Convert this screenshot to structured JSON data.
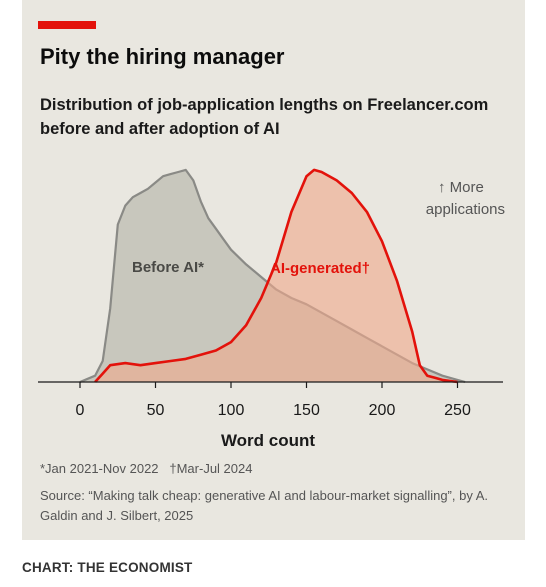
{
  "title": "Pity the hiring manager",
  "subtitle": "Distribution of job-application lengths on Freelancer.com before and after adoption of AI",
  "annotation": "↑ More applications",
  "footnote_before": "*Jan 2021-Nov 2022",
  "footnote_after": "†Mar-Jul 2024",
  "source": "Source: “Making talk cheap: generative AI and labour-market signalling”, by A. Galdin and J. Silbert, 2025",
  "credit": "CHART: THE ECONOMIST",
  "colors": {
    "accent": "#e3120b",
    "before_line": "#8a8a86",
    "before_fill": "#c4c3b9",
    "after_line": "#e3120b",
    "after_fill": "#efa98c",
    "background": "#e9e7e0"
  },
  "chart_data": {
    "type": "area",
    "xlabel": "Word count",
    "ylabel": "",
    "xlim": [
      -30,
      280
    ],
    "x_ticks": [
      0,
      50,
      100,
      150,
      200,
      250
    ],
    "y_unit": "relative density (not labelled)",
    "series": [
      {
        "name": "Before AI*",
        "label_text": "Before AI*",
        "x": [
          0,
          10,
          15,
          20,
          25,
          30,
          35,
          40,
          45,
          50,
          55,
          60,
          65,
          70,
          75,
          80,
          85,
          90,
          95,
          100,
          110,
          120,
          130,
          140,
          150,
          160,
          170,
          180,
          190,
          200,
          210,
          220,
          230,
          240,
          250,
          255
        ],
        "y": [
          0,
          0.03,
          0.1,
          0.35,
          0.75,
          0.84,
          0.88,
          0.9,
          0.92,
          0.95,
          0.98,
          0.99,
          1.0,
          1.01,
          0.96,
          0.86,
          0.78,
          0.73,
          0.68,
          0.63,
          0.56,
          0.5,
          0.44,
          0.4,
          0.37,
          0.33,
          0.29,
          0.25,
          0.21,
          0.17,
          0.13,
          0.09,
          0.06,
          0.03,
          0.01,
          0
        ]
      },
      {
        "name": "AI-generated†",
        "label_text": "AI-generated†",
        "x": [
          10,
          15,
          20,
          30,
          40,
          50,
          60,
          70,
          80,
          90,
          100,
          110,
          120,
          130,
          140,
          150,
          155,
          160,
          170,
          180,
          190,
          200,
          210,
          220,
          225,
          230,
          235,
          240,
          250
        ],
        "y": [
          0,
          0.04,
          0.08,
          0.09,
          0.08,
          0.09,
          0.1,
          0.11,
          0.13,
          0.15,
          0.19,
          0.27,
          0.4,
          0.57,
          0.81,
          0.98,
          1.01,
          1.0,
          0.96,
          0.9,
          0.81,
          0.67,
          0.48,
          0.24,
          0.08,
          0.03,
          0.02,
          0.01,
          0
        ]
      }
    ]
  }
}
